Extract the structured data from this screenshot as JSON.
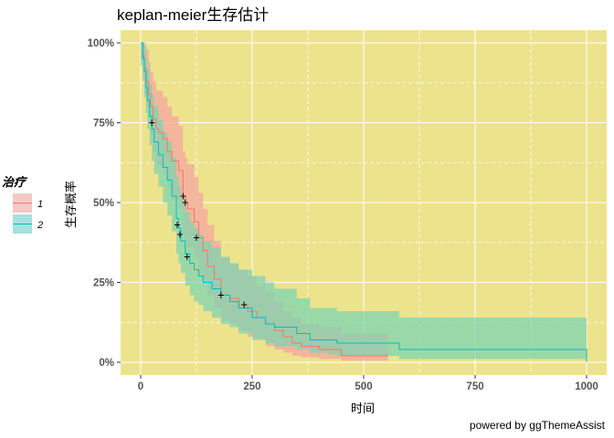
{
  "chart_data": {
    "type": "line",
    "title": "keplan-meier生存估计",
    "xlabel": "时间",
    "ylabel": "生存概率",
    "caption": "powered by ggThemeAssist",
    "xlim": [
      -45,
      1045
    ],
    "ylim": [
      -0.04,
      1.04
    ],
    "x_ticks": [
      0,
      250,
      500,
      750,
      1000
    ],
    "y_ticks": [
      0,
      0.25,
      0.5,
      0.75,
      1.0
    ],
    "y_tick_labels": [
      "0%",
      "25%",
      "50%",
      "75%",
      "100%"
    ],
    "grid": true,
    "panel_background": "#ede38d",
    "grid_color": "#ffffff",
    "legend": {
      "title": "治疗",
      "position": "left",
      "entries": [
        "1",
        "2"
      ]
    },
    "series": [
      {
        "name": "1",
        "color": "#f8766d",
        "band_color": "#f4a6a0",
        "points": [
          [
            0,
            1.0
          ],
          [
            5,
            0.96
          ],
          [
            8,
            0.92
          ],
          [
            12,
            0.88
          ],
          [
            18,
            0.84
          ],
          [
            22,
            0.8
          ],
          [
            28,
            0.76
          ],
          [
            35,
            0.73
          ],
          [
            40,
            0.72
          ],
          [
            50,
            0.7
          ],
          [
            60,
            0.66
          ],
          [
            70,
            0.63
          ],
          [
            85,
            0.6
          ],
          [
            95,
            0.52
          ],
          [
            100,
            0.5
          ],
          [
            105,
            0.48
          ],
          [
            120,
            0.44
          ],
          [
            130,
            0.39
          ],
          [
            140,
            0.35
          ],
          [
            150,
            0.3
          ],
          [
            165,
            0.26
          ],
          [
            180,
            0.21
          ],
          [
            200,
            0.2
          ],
          [
            220,
            0.18
          ],
          [
            240,
            0.16
          ],
          [
            260,
            0.14
          ],
          [
            280,
            0.12
          ],
          [
            300,
            0.1
          ],
          [
            320,
            0.08
          ],
          [
            340,
            0.06
          ],
          [
            360,
            0.05
          ],
          [
            400,
            0.04
          ],
          [
            450,
            0.02
          ],
          [
            555,
            0.02
          ]
        ],
        "lower": [
          [
            0,
            0.95
          ],
          [
            5,
            0.89
          ],
          [
            8,
            0.84
          ],
          [
            12,
            0.8
          ],
          [
            18,
            0.75
          ],
          [
            22,
            0.71
          ],
          [
            28,
            0.66
          ],
          [
            35,
            0.62
          ],
          [
            40,
            0.61
          ],
          [
            50,
            0.59
          ],
          [
            60,
            0.55
          ],
          [
            70,
            0.51
          ],
          [
            85,
            0.48
          ],
          [
            95,
            0.4
          ],
          [
            100,
            0.38
          ],
          [
            105,
            0.36
          ],
          [
            120,
            0.33
          ],
          [
            130,
            0.28
          ],
          [
            140,
            0.25
          ],
          [
            150,
            0.21
          ],
          [
            165,
            0.17
          ],
          [
            180,
            0.13
          ],
          [
            200,
            0.12
          ],
          [
            220,
            0.1
          ],
          [
            240,
            0.08
          ],
          [
            260,
            0.07
          ],
          [
            280,
            0.05
          ],
          [
            300,
            0.04
          ],
          [
            320,
            0.03
          ],
          [
            340,
            0.02
          ],
          [
            360,
            0.015
          ],
          [
            400,
            0.01
          ],
          [
            450,
            0.005
          ],
          [
            555,
            0.005
          ]
        ],
        "upper": [
          [
            0,
            1.0
          ],
          [
            5,
            1.0
          ],
          [
            8,
            1.0
          ],
          [
            12,
            0.98
          ],
          [
            18,
            0.94
          ],
          [
            22,
            0.91
          ],
          [
            28,
            0.88
          ],
          [
            35,
            0.85
          ],
          [
            40,
            0.85
          ],
          [
            50,
            0.83
          ],
          [
            60,
            0.8
          ],
          [
            70,
            0.77
          ],
          [
            85,
            0.74
          ],
          [
            95,
            0.66
          ],
          [
            100,
            0.64
          ],
          [
            105,
            0.62
          ],
          [
            120,
            0.58
          ],
          [
            130,
            0.53
          ],
          [
            140,
            0.48
          ],
          [
            150,
            0.43
          ],
          [
            165,
            0.38
          ],
          [
            180,
            0.33
          ],
          [
            200,
            0.31
          ],
          [
            220,
            0.29
          ],
          [
            240,
            0.27
          ],
          [
            260,
            0.24
          ],
          [
            280,
            0.22
          ],
          [
            300,
            0.19
          ],
          [
            320,
            0.16
          ],
          [
            340,
            0.14
          ],
          [
            360,
            0.12
          ],
          [
            400,
            0.11
          ],
          [
            450,
            0.09
          ],
          [
            555,
            0.09
          ]
        ],
        "censored": [
          [
            25,
            0.75
          ],
          [
            95,
            0.52
          ],
          [
            100,
            0.5
          ],
          [
            125,
            0.39
          ],
          [
            180,
            0.21
          ],
          [
            232,
            0.18
          ]
        ]
      },
      {
        "name": "2",
        "color": "#00bfc4",
        "band_color": "#7fd4b0",
        "points": [
          [
            0,
            1.0
          ],
          [
            5,
            0.95
          ],
          [
            8,
            0.91
          ],
          [
            12,
            0.86
          ],
          [
            15,
            0.82
          ],
          [
            20,
            0.77
          ],
          [
            25,
            0.73
          ],
          [
            30,
            0.69
          ],
          [
            40,
            0.65
          ],
          [
            50,
            0.61
          ],
          [
            60,
            0.57
          ],
          [
            70,
            0.52
          ],
          [
            80,
            0.45
          ],
          [
            85,
            0.42
          ],
          [
            90,
            0.38
          ],
          [
            100,
            0.34
          ],
          [
            110,
            0.31
          ],
          [
            120,
            0.29
          ],
          [
            130,
            0.27
          ],
          [
            140,
            0.25
          ],
          [
            160,
            0.23
          ],
          [
            180,
            0.21
          ],
          [
            200,
            0.19
          ],
          [
            220,
            0.17
          ],
          [
            250,
            0.14
          ],
          [
            280,
            0.12
          ],
          [
            300,
            0.11
          ],
          [
            350,
            0.09
          ],
          [
            380,
            0.07
          ],
          [
            420,
            0.07
          ],
          [
            440,
            0.06
          ],
          [
            580,
            0.04
          ],
          [
            900,
            0.04
          ],
          [
            1000,
            0.04
          ],
          [
            1000,
            0.0
          ]
        ],
        "lower": [
          [
            0,
            0.93
          ],
          [
            5,
            0.88
          ],
          [
            8,
            0.83
          ],
          [
            12,
            0.78
          ],
          [
            15,
            0.73
          ],
          [
            20,
            0.68
          ],
          [
            25,
            0.63
          ],
          [
            30,
            0.59
          ],
          [
            40,
            0.55
          ],
          [
            50,
            0.5
          ],
          [
            60,
            0.46
          ],
          [
            70,
            0.41
          ],
          [
            80,
            0.34
          ],
          [
            85,
            0.31
          ],
          [
            90,
            0.28
          ],
          [
            100,
            0.24
          ],
          [
            110,
            0.21
          ],
          [
            120,
            0.19
          ],
          [
            130,
            0.18
          ],
          [
            140,
            0.16
          ],
          [
            160,
            0.14
          ],
          [
            180,
            0.12
          ],
          [
            200,
            0.11
          ],
          [
            220,
            0.09
          ],
          [
            250,
            0.07
          ],
          [
            280,
            0.06
          ],
          [
            300,
            0.05
          ],
          [
            350,
            0.04
          ],
          [
            380,
            0.03
          ],
          [
            420,
            0.025
          ],
          [
            440,
            0.02
          ],
          [
            580,
            0.01
          ],
          [
            900,
            0.01
          ],
          [
            1000,
            0.01
          ]
        ],
        "upper": [
          [
            0,
            1.0
          ],
          [
            5,
            1.0
          ],
          [
            8,
            0.99
          ],
          [
            12,
            0.95
          ],
          [
            15,
            0.92
          ],
          [
            20,
            0.87
          ],
          [
            25,
            0.84
          ],
          [
            30,
            0.8
          ],
          [
            40,
            0.76
          ],
          [
            50,
            0.72
          ],
          [
            60,
            0.69
          ],
          [
            70,
            0.64
          ],
          [
            80,
            0.58
          ],
          [
            85,
            0.55
          ],
          [
            90,
            0.51
          ],
          [
            100,
            0.47
          ],
          [
            110,
            0.44
          ],
          [
            120,
            0.42
          ],
          [
            130,
            0.4
          ],
          [
            140,
            0.38
          ],
          [
            160,
            0.36
          ],
          [
            180,
            0.33
          ],
          [
            200,
            0.31
          ],
          [
            220,
            0.29
          ],
          [
            250,
            0.27
          ],
          [
            280,
            0.25
          ],
          [
            300,
            0.23
          ],
          [
            350,
            0.2
          ],
          [
            380,
            0.17
          ],
          [
            420,
            0.17
          ],
          [
            440,
            0.16
          ],
          [
            580,
            0.14
          ],
          [
            900,
            0.14
          ],
          [
            1000,
            0.14
          ]
        ],
        "censored": [
          [
            82,
            0.43
          ],
          [
            88,
            0.4
          ],
          [
            104,
            0.33
          ]
        ]
      }
    ]
  }
}
